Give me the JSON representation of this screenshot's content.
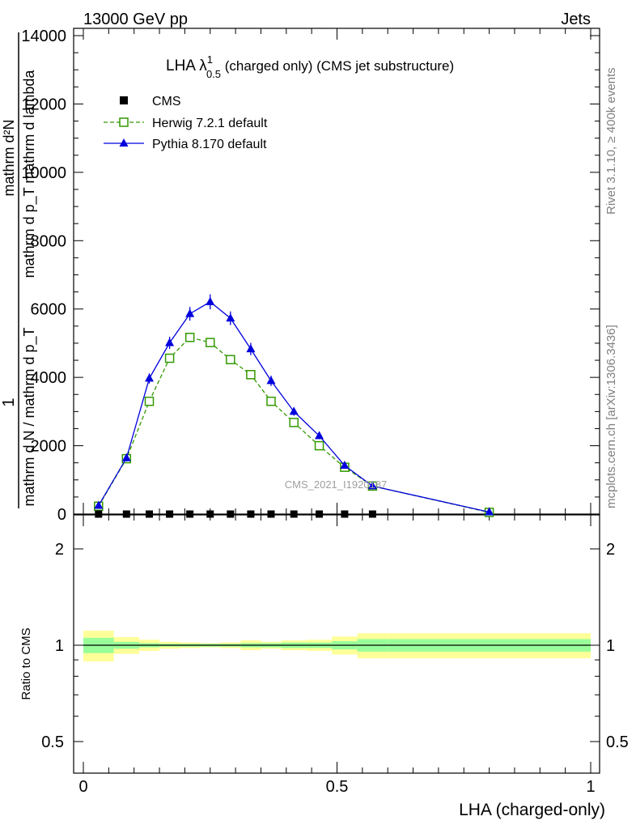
{
  "header": {
    "left": "13000 GeV pp",
    "right": "Jets"
  },
  "side_text": {
    "rivet": "Rivet 3.1.10, ≥ 400k events",
    "mcplots": "mcplots.cern.ch [arXiv:1306.3436]"
  },
  "main_title": {
    "base": "LHA λ",
    "sup": "1",
    "sub": "0.5",
    "rest": " (charged only) (CMS jet substructure)"
  },
  "watermark": "CMS_2021_I1920187",
  "y_label_main": {
    "numerator": "mathrm d²N",
    "denominator": "mathrm d p_T mathrm d lambda",
    "prefactor": "1",
    "norm": "mathrm d N / mathrm d p_T"
  },
  "y_label_ratio": "Ratio to CMS",
  "x_label": "LHA (charged-only)",
  "legend": [
    {
      "name": "CMS",
      "color": "#000000",
      "marker": "square-filled"
    },
    {
      "name": "Herwig 7.2.1 default",
      "color": "#339900",
      "marker": "square-open"
    },
    {
      "name": "Pythia 8.170 default",
      "color": "#0000dd",
      "marker": "triangle-filled"
    }
  ],
  "colors": {
    "band_inner": "#99ff99",
    "band_outer": "#ffff99"
  },
  "chart_data": {
    "type": "line",
    "main": {
      "xlim": [
        0,
        1
      ],
      "ylim": [
        0,
        14000
      ],
      "y_ticks": [
        0,
        2000,
        4000,
        6000,
        8000,
        10000,
        12000,
        14000
      ],
      "y_tick_labels": [
        "0",
        "2000",
        "4000",
        "6000",
        "8000",
        "10000",
        "12000",
        "14000"
      ]
    },
    "ratio": {
      "ylim": [
        0.4,
        2.4
      ],
      "log": true,
      "y_ticks": [
        0.5,
        1,
        2
      ],
      "y_tick_labels": [
        "0.5",
        "1",
        "2"
      ]
    },
    "x_ticks": [
      0,
      0.5,
      1
    ],
    "x_tick_labels": [
      "0",
      "0.5",
      "1"
    ],
    "series": [
      {
        "name": "CMS",
        "x": [
          0.03,
          0.085,
          0.13,
          0.17,
          0.21,
          0.25,
          0.29,
          0.33,
          0.37,
          0.415,
          0.465,
          0.515,
          0.57
        ],
        "y": [
          0,
          0,
          0,
          0,
          0,
          0,
          0,
          0,
          0,
          0,
          0,
          0,
          0
        ]
      },
      {
        "name": "Herwig 7.2.1 default",
        "x": [
          0.03,
          0.085,
          0.13,
          0.17,
          0.21,
          0.25,
          0.29,
          0.33,
          0.37,
          0.415,
          0.465,
          0.515,
          0.57,
          0.8
        ],
        "y": [
          230,
          1620,
          3300,
          4560,
          5170,
          5020,
          4520,
          4080,
          3300,
          2680,
          2000,
          1370,
          820,
          50
        ],
        "err": [
          60,
          80,
          100,
          110,
          120,
          120,
          110,
          100,
          90,
          80,
          70,
          60,
          50,
          10
        ]
      },
      {
        "name": "Pythia 8.170 default",
        "x": [
          0.03,
          0.085,
          0.13,
          0.17,
          0.21,
          0.25,
          0.29,
          0.33,
          0.37,
          0.415,
          0.465,
          0.515,
          0.57,
          0.8
        ],
        "y": [
          250,
          1640,
          3970,
          5010,
          5860,
          6210,
          5730,
          4830,
          3900,
          3000,
          2290,
          1420,
          820,
          60
        ],
        "err": [
          70,
          100,
          150,
          180,
          200,
          220,
          200,
          180,
          150,
          120,
          100,
          80,
          60,
          20
        ]
      }
    ],
    "ratio_bands": {
      "edges": [
        0,
        0.06,
        0.11,
        0.15,
        0.19,
        0.23,
        0.27,
        0.31,
        0.35,
        0.39,
        0.44,
        0.49,
        0.54,
        0.6,
        1.0
      ],
      "inner_lo": [
        0.945,
        0.975,
        0.985,
        0.99,
        0.99,
        0.99,
        0.99,
        0.985,
        0.985,
        0.98,
        0.98,
        0.97,
        0.955,
        0.955
      ],
      "inner_hi": [
        1.055,
        1.025,
        1.015,
        1.01,
        1.01,
        1.01,
        1.01,
        1.015,
        1.015,
        1.02,
        1.02,
        1.03,
        1.045,
        1.045
      ],
      "outer_lo": [
        0.89,
        0.94,
        0.96,
        0.975,
        0.98,
        0.985,
        0.98,
        0.965,
        0.975,
        0.965,
        0.96,
        0.935,
        0.91,
        0.91
      ],
      "outer_hi": [
        1.11,
        1.06,
        1.04,
        1.025,
        1.02,
        1.015,
        1.02,
        1.035,
        1.025,
        1.035,
        1.04,
        1.065,
        1.09,
        1.09
      ]
    }
  }
}
